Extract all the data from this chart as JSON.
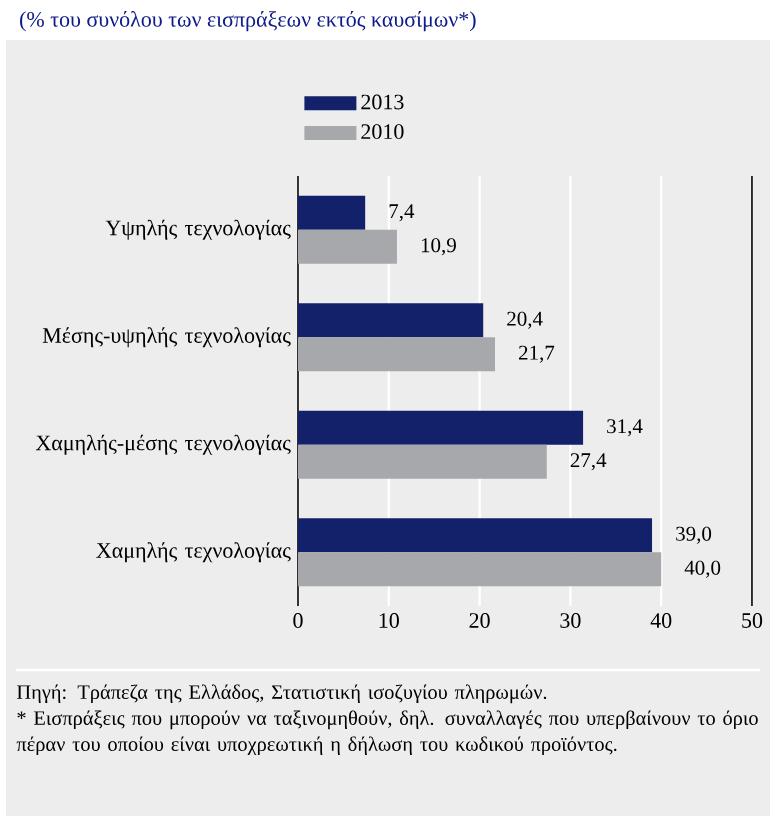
{
  "chart_data": {
    "type": "bar",
    "orientation": "horizontal",
    "title": "(% του συνόλου των εισπράξεων εκτός καυσίμων*)",
    "categories": [
      "Υψηλής τεχνολογίας",
      "Μέσης-υψηλής τεχνολογίας",
      "Χαμηλής-μέσης τεχνολογίας",
      "Χαμηλής τεχνολογίας"
    ],
    "series": [
      {
        "name": "2013",
        "color": "#13216a",
        "values": [
          7.4,
          20.4,
          31.4,
          39.0
        ],
        "value_labels": [
          "7,4",
          "20,4",
          "31,4",
          "39,0"
        ]
      },
      {
        "name": "2010",
        "color": "#a7a8ac",
        "values": [
          10.9,
          21.7,
          27.4,
          40.0
        ],
        "value_labels": [
          "10,9",
          "21,7",
          "27,4",
          "40,0"
        ]
      }
    ],
    "xlim": [
      0,
      50
    ],
    "xticks": [
      0,
      10,
      20,
      30,
      40,
      50
    ],
    "grid": "x",
    "legend": "top",
    "annotations": [
      "Πηγή: Τράπεζα της Ελλάδος, Στατιστική ισοζυγίου πληρωμών.",
      "* Εισπράξεις που μπορούν να ταξινομηθούν, δηλ. συναλλαγές που υπερβαίνουν το όριο πέραν του οποίου είναι υποχρεωτική η δήλωση του κωδικού προϊόντος."
    ]
  }
}
